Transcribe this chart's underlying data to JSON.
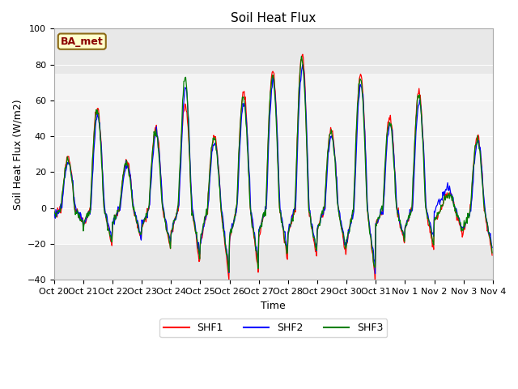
{
  "title": "Soil Heat Flux",
  "ylabel": "Soil Heat Flux (W/m2)",
  "xlabel": "Time",
  "ylim": [
    -40,
    100
  ],
  "yticks": [
    -40,
    -20,
    0,
    20,
    40,
    60,
    80,
    100
  ],
  "xtick_labels": [
    "Oct 20",
    "Oct 21",
    "Oct 22",
    "Oct 23",
    "Oct 24",
    "Oct 25",
    "Oct 26",
    "Oct 27",
    "Oct 28",
    "Oct 29",
    "Oct 30",
    "Oct 31",
    "Nov 1",
    "Nov 2",
    "Nov 3",
    "Nov 4"
  ],
  "legend_label": "BA_met",
  "series_labels": [
    "SHF1",
    "SHF2",
    "SHF3"
  ],
  "series_colors": [
    "red",
    "blue",
    "green"
  ],
  "shaded_band_light": [
    -20,
    75
  ],
  "background_color": "#e8e8e8",
  "inner_band_color": "#d4d4d4",
  "title_fontsize": 11,
  "axis_label_fontsize": 9,
  "tick_fontsize": 8
}
